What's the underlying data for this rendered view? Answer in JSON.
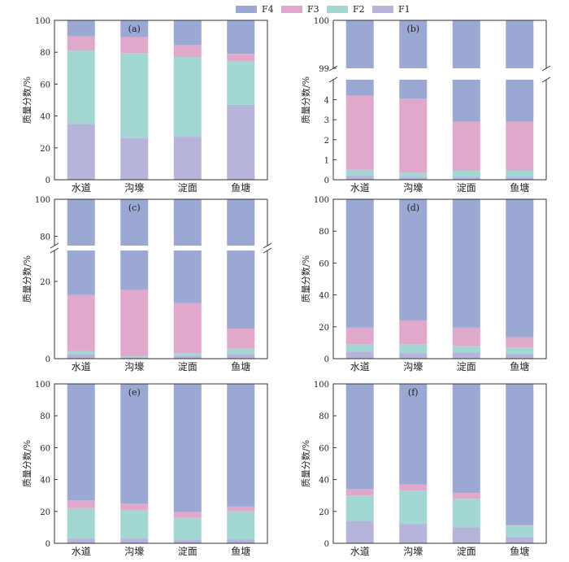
{
  "legend": [
    {
      "label": "F4",
      "color": "#9aa8d3"
    },
    {
      "label": "F3",
      "color": "#e0a9cb"
    },
    {
      "label": "F2",
      "color": "#a2d7d3"
    },
    {
      "label": "F1",
      "color": "#b7b4db"
    }
  ],
  "chart_data": [
    {
      "panel": "(a)",
      "type": "bar",
      "stacked": true,
      "categories": [
        "水道",
        "沟壕",
        "淀面",
        "鱼塘"
      ],
      "series": [
        {
          "name": "F1",
          "values": [
            35,
            26,
            27,
            47
          ]
        },
        {
          "name": "F2",
          "values": [
            46,
            53.5,
            50,
            27.5
          ]
        },
        {
          "name": "F3",
          "values": [
            9,
            10,
            7.5,
            4.5
          ]
        },
        {
          "name": "F4",
          "values": [
            10,
            10.5,
            15.5,
            21
          ]
        }
      ],
      "ylabel": "质量分数/%",
      "ylim": [
        0,
        100
      ],
      "yticks": [
        "0",
        "20",
        "40",
        "60",
        "80",
        "100"
      ]
    },
    {
      "panel": "(b)",
      "type": "bar",
      "stacked": true,
      "broken_axis": true,
      "categories": [
        "水道",
        "沟壕",
        "淀面",
        "鱼塘"
      ],
      "series": [
        {
          "name": "F1",
          "values": [
            0.2,
            0.15,
            0.15,
            0.15
          ]
        },
        {
          "name": "F2",
          "values": [
            0.3,
            0.2,
            0.3,
            0.3
          ]
        },
        {
          "name": "F3",
          "values": [
            3.7,
            3.7,
            2.45,
            2.45
          ]
        },
        {
          "name": "F4",
          "values": [
            95.8,
            95.95,
            97.1,
            97.1
          ]
        }
      ],
      "ylabel": "质量分数/%",
      "ylim_lower": [
        0,
        5
      ],
      "ylim_upper": [
        99,
        100
      ],
      "yticks_lower": [
        "0",
        "1",
        "2",
        "3",
        "4"
      ],
      "yticks_upper": [
        "99",
        "100"
      ]
    },
    {
      "panel": "(c)",
      "type": "bar",
      "stacked": true,
      "broken_axis": true,
      "categories": [
        "水道",
        "沟壕",
        "淀面",
        "鱼塘"
      ],
      "series": [
        {
          "name": "F1",
          "values": [
            1.2,
            0.3,
            0.8,
            1.2
          ]
        },
        {
          "name": "F2",
          "values": [
            0.8,
            0.3,
            0.6,
            1.4
          ]
        },
        {
          "name": "F3",
          "values": [
            14.5,
            17.2,
            13,
            5.2
          ]
        },
        {
          "name": "F4",
          "values": [
            83.5,
            82.2,
            85.6,
            92.2
          ]
        }
      ],
      "ylabel": "质量分数/%",
      "ylim_lower": [
        0,
        28
      ],
      "ylim_upper": [
        75,
        100
      ],
      "yticks_lower": [
        "0",
        "20"
      ],
      "yticks_upper": [
        "80",
        "100"
      ]
    },
    {
      "panel": "(d)",
      "type": "bar",
      "stacked": true,
      "categories": [
        "水道",
        "沟壕",
        "淀面",
        "鱼塘"
      ],
      "series": [
        {
          "name": "F1",
          "values": [
            4.5,
            3.5,
            4,
            3
          ]
        },
        {
          "name": "F2",
          "values": [
            4.5,
            5.5,
            4,
            4
          ]
        },
        {
          "name": "F3",
          "values": [
            10.5,
            15,
            11.5,
            6.5
          ]
        },
        {
          "name": "F4",
          "values": [
            80.5,
            76,
            80.5,
            86.5
          ]
        }
      ],
      "ylabel": "质量分数/%",
      "ylim": [
        0,
        100
      ],
      "yticks": [
        "0",
        "20",
        "40",
        "60",
        "80",
        "100"
      ]
    },
    {
      "panel": "(e)",
      "type": "bar",
      "stacked": true,
      "categories": [
        "水道",
        "沟壕",
        "淀面",
        "鱼塘"
      ],
      "series": [
        {
          "name": "F1",
          "values": [
            3,
            3,
            2,
            2.5
          ]
        },
        {
          "name": "F2",
          "values": [
            19,
            17.5,
            14,
            17.5
          ]
        },
        {
          "name": "F3",
          "values": [
            5,
            4.5,
            3.5,
            3
          ]
        },
        {
          "name": "F4",
          "values": [
            73,
            75,
            80.5,
            77
          ]
        }
      ],
      "ylabel": "质量分数/%",
      "ylim": [
        0,
        100
      ],
      "yticks": [
        "0",
        "20",
        "40",
        "60",
        "80",
        "100"
      ]
    },
    {
      "panel": "(f)",
      "type": "bar",
      "stacked": true,
      "categories": [
        "水道",
        "沟壕",
        "淀面",
        "鱼塘"
      ],
      "series": [
        {
          "name": "F1",
          "values": [
            14,
            12,
            10,
            4
          ]
        },
        {
          "name": "F2",
          "values": [
            16,
            21,
            18,
            7
          ]
        },
        {
          "name": "F3",
          "values": [
            4,
            4,
            3.5,
            0.5
          ]
        },
        {
          "name": "F4",
          "values": [
            66,
            63,
            68.5,
            88.5
          ]
        }
      ],
      "ylabel": "质量分数/%",
      "ylim": [
        0,
        100
      ],
      "yticks": [
        "0",
        "20",
        "40",
        "60",
        "80",
        "100"
      ]
    }
  ]
}
